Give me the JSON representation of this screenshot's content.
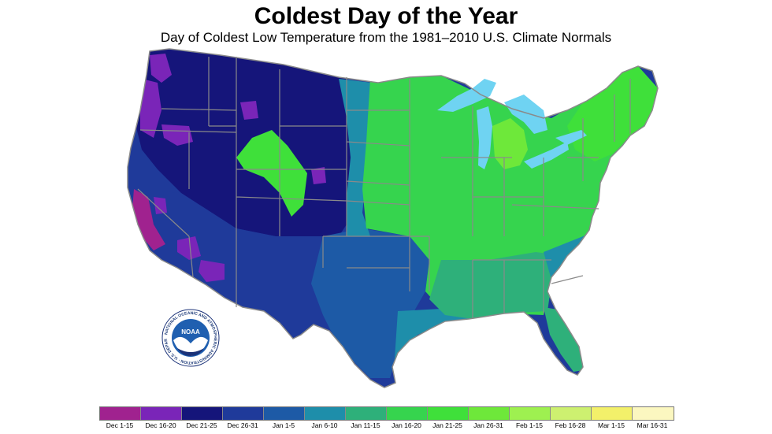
{
  "title": "Coldest Day of the Year",
  "subtitle": "Day of Coldest Low Temperature from the 1981–2010 U.S. Climate Normals",
  "logo": {
    "name": "NOAA",
    "ring_text": "NATIONAL OCEANIC AND ATMOSPHERIC ADMINISTRATION · U.S. DEPARTMENT OF COMMERCE"
  },
  "legend": [
    {
      "label": "Dec 1-15",
      "color": "#a0228f"
    },
    {
      "label": "Dec 16-20",
      "color": "#7a25b8"
    },
    {
      "label": "Dec 21-25",
      "color": "#15157a"
    },
    {
      "label": "Dec 26-31",
      "color": "#1f3a9a"
    },
    {
      "label": "Jan 1-5",
      "color": "#1d5aa6"
    },
    {
      "label": "Jan 6-10",
      "color": "#1e8eaa"
    },
    {
      "label": "Jan 11-15",
      "color": "#2eb07a"
    },
    {
      "label": "Jan 16-20",
      "color": "#36d44e"
    },
    {
      "label": "Jan 21-25",
      "color": "#3fe03a"
    },
    {
      "label": "Jan 26-31",
      "color": "#6ee83a"
    },
    {
      "label": "Feb 1-15",
      "color": "#9ef050"
    },
    {
      "label": "Feb 16-28",
      "color": "#cdf070"
    },
    {
      "label": "Mar 1-15",
      "color": "#f3f06a"
    },
    {
      "label": "Mar 16-31",
      "color": "#fbf7c0"
    }
  ],
  "colors": {
    "lakes": "#6fd3f2",
    "state_borders": "#8a8a8a",
    "noaa_blue": "#1f5fb0",
    "noaa_dark": "#1b3278"
  }
}
